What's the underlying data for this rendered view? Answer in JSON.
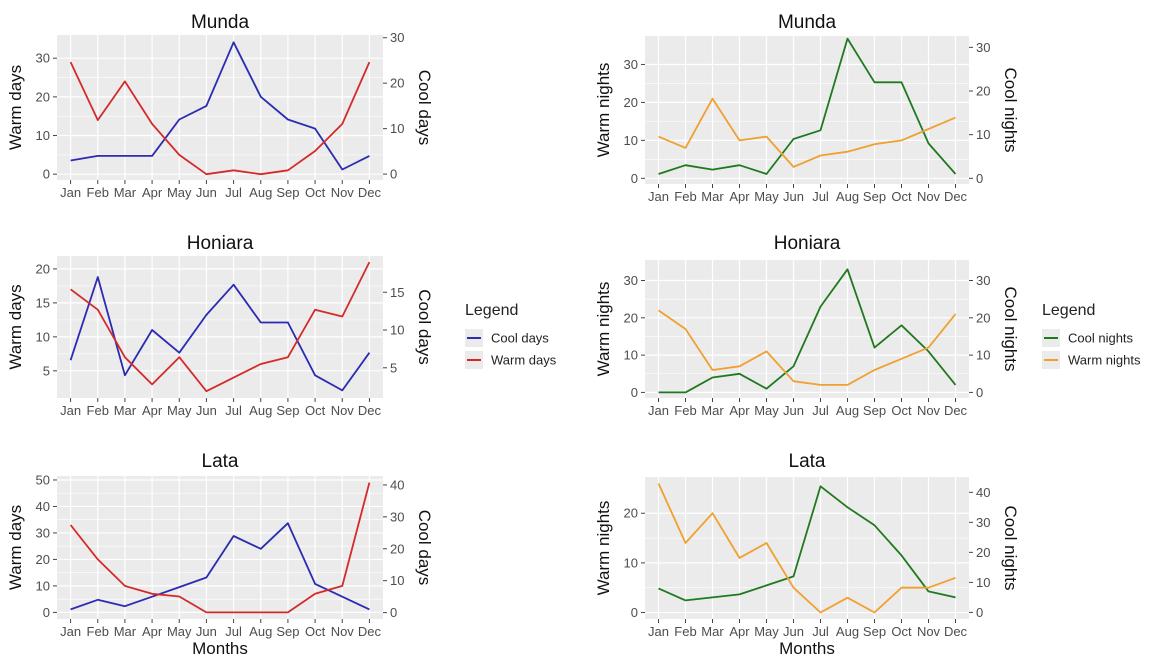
{
  "months": [
    "Jan",
    "Feb",
    "Mar",
    "Apr",
    "May",
    "Jun",
    "Jul",
    "Aug",
    "Sep",
    "Oct",
    "Nov",
    "Dec"
  ],
  "colors": {
    "cool_days": "#2b2bb3",
    "warm_days": "#d42a2a",
    "cool_nights": "#1f7a1f",
    "warm_nights": "#f0a030",
    "panel_bg": "#ebebeb",
    "grid": "#ffffff"
  },
  "legends": [
    {
      "title": "Legend",
      "items": [
        {
          "label": "Cool days",
          "color": "#2b2bb3"
        },
        {
          "label": "Warm days",
          "color": "#d42a2a"
        }
      ]
    },
    {
      "title": "Legend",
      "items": [
        {
          "label": "Cool nights",
          "color": "#1f7a1f"
        },
        {
          "label": "Warm nights",
          "color": "#f0a030"
        }
      ]
    }
  ],
  "chart_data": [
    {
      "type": "line",
      "title": "Munda",
      "xlabel": "",
      "ylabel": "Warm days",
      "y2label": "Cool days",
      "ylim": [
        -1.5,
        36
      ],
      "yticks": [
        0,
        10,
        20,
        30
      ],
      "y2lim": [
        -1.3,
        30.6
      ],
      "y2ticks": [
        0,
        10,
        20,
        30
      ],
      "series": [
        {
          "name": "Cool days",
          "axis": "right",
          "values": [
            3,
            4,
            4,
            4,
            12,
            15,
            29,
            17,
            12,
            10,
            1,
            4
          ]
        },
        {
          "name": "Warm days",
          "axis": "left",
          "values": [
            29,
            14,
            24,
            13,
            5,
            0,
            1,
            0,
            1,
            6,
            13,
            29
          ]
        }
      ]
    },
    {
      "type": "line",
      "title": "Munda",
      "xlabel": "",
      "ylabel": "Warm nights",
      "y2label": "Cool nights",
      "ylim": [
        -1.5,
        37.5
      ],
      "yticks": [
        0,
        10,
        20,
        30
      ],
      "y2lim": [
        -1.3,
        32.6
      ],
      "y2ticks": [
        0,
        10,
        20,
        30
      ],
      "series": [
        {
          "name": "Cool nights",
          "axis": "right",
          "values": [
            1,
            3,
            2,
            3,
            1,
            9,
            11,
            32,
            22,
            22,
            8,
            1
          ]
        },
        {
          "name": "Warm nights",
          "axis": "left",
          "values": [
            11,
            8,
            21,
            10,
            11,
            3,
            6,
            7,
            9,
            10,
            13,
            16
          ]
        }
      ]
    },
    {
      "type": "line",
      "title": "Honiara",
      "xlabel": "",
      "ylabel": "Warm days",
      "y2label": "Cool days",
      "ylim": [
        1,
        21.9
      ],
      "yticks": [
        5,
        10,
        15,
        20
      ],
      "y2lim": [
        1,
        19.8
      ],
      "y2ticks": [
        5,
        10,
        15
      ],
      "series": [
        {
          "name": "Cool days",
          "axis": "right",
          "values": [
            6,
            17,
            4,
            10,
            7,
            12,
            16,
            11,
            11,
            4,
            2,
            7
          ]
        },
        {
          "name": "Warm days",
          "axis": "left",
          "values": [
            17,
            14,
            7,
            3,
            7,
            2,
            4,
            6,
            7,
            14,
            13,
            21
          ]
        }
      ]
    },
    {
      "type": "line",
      "title": "Honiara",
      "xlabel": "",
      "ylabel": "Warm nights",
      "y2label": "Cool nights",
      "ylim": [
        -1.5,
        35.5
      ],
      "yticks": [
        0,
        10,
        20,
        30
      ],
      "y2lim": [
        -1.5,
        35.5
      ],
      "y2ticks": [
        0,
        10,
        20,
        30
      ],
      "series": [
        {
          "name": "Cool nights",
          "axis": "right",
          "values": [
            0,
            0,
            4,
            5,
            1,
            7,
            23,
            33,
            12,
            18,
            11,
            2
          ]
        },
        {
          "name": "Warm nights",
          "axis": "left",
          "values": [
            22,
            17,
            6,
            7,
            11,
            3,
            2,
            2,
            6,
            9,
            12,
            21
          ]
        }
      ]
    },
    {
      "type": "line",
      "title": "Lata",
      "xlabel": "Months",
      "ylabel": "Warm days",
      "y2label": "Cool days",
      "ylim": [
        -2.5,
        51.5
      ],
      "yticks": [
        0,
        10,
        20,
        30,
        40,
        50
      ],
      "y2lim": [
        -2,
        42.8
      ],
      "y2ticks": [
        0,
        10,
        20,
        30,
        40
      ],
      "series": [
        {
          "name": "Cool days",
          "axis": "right",
          "values": [
            1,
            4,
            2,
            5,
            8,
            11,
            24,
            20,
            28,
            9,
            5,
            1
          ]
        },
        {
          "name": "Warm days",
          "axis": "left",
          "values": [
            33,
            20,
            10,
            7,
            6,
            0,
            0,
            0,
            0,
            7,
            10,
            49
          ]
        }
      ]
    },
    {
      "type": "line",
      "title": "Lata",
      "xlabel": "Months",
      "ylabel": "Warm nights",
      "y2label": "Cool nights",
      "ylim": [
        -1.3,
        27.3
      ],
      "yticks": [
        0,
        10,
        20
      ],
      "y2lim": [
        -2.2,
        45.1
      ],
      "y2ticks": [
        0,
        10,
        20,
        30,
        40
      ],
      "series": [
        {
          "name": "Cool nights",
          "axis": "right",
          "values": [
            8,
            4,
            5,
            6,
            9,
            12,
            42,
            35,
            29,
            19,
            7,
            5
          ]
        },
        {
          "name": "Warm nights",
          "axis": "left",
          "values": [
            26,
            14,
            20,
            11,
            14,
            5,
            0,
            3,
            0,
            5,
            5,
            7
          ]
        }
      ]
    }
  ]
}
